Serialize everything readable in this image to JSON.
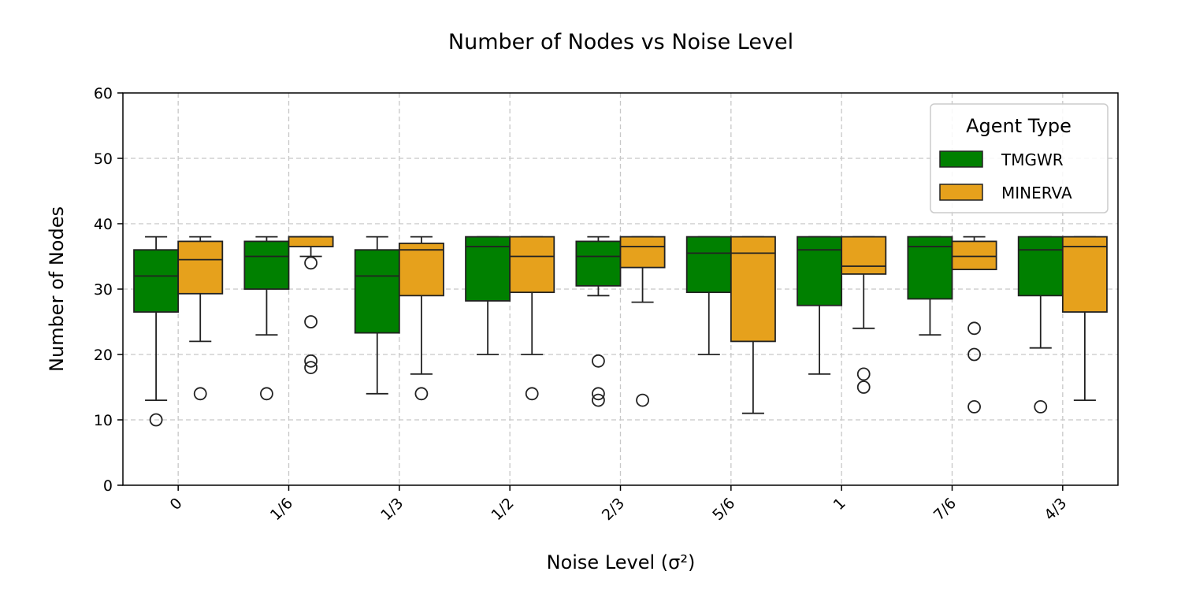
{
  "chart_data": {
    "type": "box",
    "title": "Number of Nodes vs Noise Level",
    "xlabel": "Noise Level (σ²)",
    "ylabel": "Number of Nodes",
    "categories": [
      "0",
      "1/6",
      "1/3",
      "1/2",
      "2/3",
      "5/6",
      "1",
      "7/6",
      "4/3"
    ],
    "ylim": [
      0,
      60
    ],
    "yticks": [
      0,
      10,
      20,
      30,
      40,
      50,
      60
    ],
    "grid": true,
    "legend": {
      "title": "Agent Type",
      "placement": "top-right"
    },
    "series": [
      {
        "name": "TMGWR",
        "color": "#008000",
        "boxes": [
          {
            "whislo": 13,
            "q1": 26.5,
            "med": 32,
            "q3": 36,
            "whishi": 38,
            "fliers": [
              10
            ]
          },
          {
            "whislo": 23,
            "q1": 30,
            "med": 35,
            "q3": 37.3,
            "whishi": 38,
            "fliers": [
              14
            ]
          },
          {
            "whislo": 14,
            "q1": 23.3,
            "med": 32,
            "q3": 36,
            "whishi": 38,
            "fliers": []
          },
          {
            "whislo": 20,
            "q1": 28.2,
            "med": 36.5,
            "q3": 38,
            "whishi": 38,
            "fliers": []
          },
          {
            "whislo": 29,
            "q1": 30.5,
            "med": 35,
            "q3": 37.3,
            "whishi": 38,
            "fliers": [
              19,
              14,
              13
            ]
          },
          {
            "whislo": 20,
            "q1": 29.5,
            "med": 35.5,
            "q3": 38,
            "whishi": 38,
            "fliers": []
          },
          {
            "whislo": 17,
            "q1": 27.5,
            "med": 36,
            "q3": 38,
            "whishi": 38,
            "fliers": []
          },
          {
            "whislo": 23,
            "q1": 28.5,
            "med": 36.5,
            "q3": 38,
            "whishi": 38,
            "fliers": []
          },
          {
            "whislo": 21,
            "q1": 29,
            "med": 36,
            "q3": 38,
            "whishi": 38,
            "fliers": [
              12
            ]
          }
        ]
      },
      {
        "name": "MINERVA",
        "color": "#e6a11c",
        "boxes": [
          {
            "whislo": 22,
            "q1": 29.3,
            "med": 34.5,
            "q3": 37.3,
            "whishi": 38,
            "fliers": [
              14
            ]
          },
          {
            "whislo": 35,
            "q1": 36.5,
            "med": 38,
            "q3": 38,
            "whishi": 38,
            "fliers": [
              34,
              25,
              19,
              18
            ]
          },
          {
            "whislo": 17,
            "q1": 29,
            "med": 36,
            "q3": 37,
            "whishi": 38,
            "fliers": [
              14
            ]
          },
          {
            "whislo": 20,
            "q1": 29.5,
            "med": 35,
            "q3": 38,
            "whishi": 38,
            "fliers": [
              14
            ]
          },
          {
            "whislo": 28,
            "q1": 33.3,
            "med": 36.5,
            "q3": 38,
            "whishi": 38,
            "fliers": [
              13
            ]
          },
          {
            "whislo": 11,
            "q1": 22,
            "med": 35.5,
            "q3": 38,
            "whishi": 38,
            "fliers": []
          },
          {
            "whislo": 24,
            "q1": 32.3,
            "med": 33.5,
            "q3": 38,
            "whishi": 38,
            "fliers": [
              17,
              15
            ]
          },
          {
            "whislo": 33,
            "q1": 33,
            "med": 35,
            "q3": 37.3,
            "whishi": 38,
            "fliers": [
              24,
              20,
              12
            ]
          },
          {
            "whislo": 13,
            "q1": 26.5,
            "med": 36.5,
            "q3": 38,
            "whishi": 38,
            "fliers": []
          }
        ]
      }
    ]
  }
}
